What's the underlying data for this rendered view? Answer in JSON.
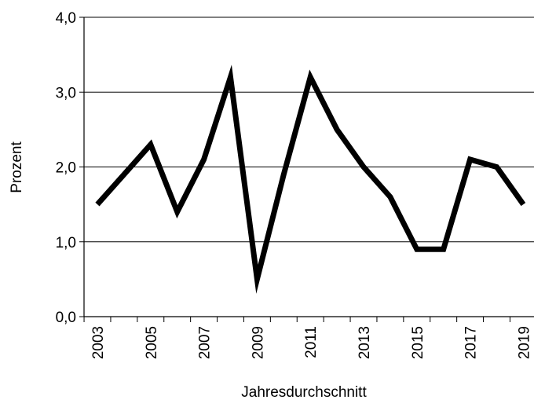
{
  "chart_data": {
    "type": "line",
    "title": "",
    "xlabel": "Jahresdurchschnitt",
    "ylabel": "Prozent",
    "ylim": [
      0,
      4
    ],
    "yticks": [
      "0,0",
      "1,0",
      "2,0",
      "3,0",
      "4,0"
    ],
    "ytick_values": [
      0,
      1,
      2,
      3,
      4
    ],
    "x": [
      2003,
      2004,
      2005,
      2006,
      2007,
      2008,
      2009,
      2010,
      2011,
      2012,
      2013,
      2014,
      2015,
      2016,
      2017,
      2018,
      2019
    ],
    "xtick_labels": [
      "2003",
      "2005",
      "2007",
      "2009",
      "2011",
      "2013",
      "2015",
      "2017",
      "2019"
    ],
    "xtick_years": [
      2003,
      2005,
      2007,
      2009,
      2011,
      2013,
      2015,
      2017,
      2019
    ],
    "series": [
      {
        "values": [
          1.5,
          1.9,
          2.3,
          1.4,
          2.1,
          3.2,
          0.5,
          1.9,
          3.2,
          2.5,
          2.0,
          1.6,
          0.9,
          0.9,
          2.1,
          2.0,
          1.5
        ],
        "color": "#000000"
      }
    ],
    "grid": true,
    "legend": "none"
  }
}
